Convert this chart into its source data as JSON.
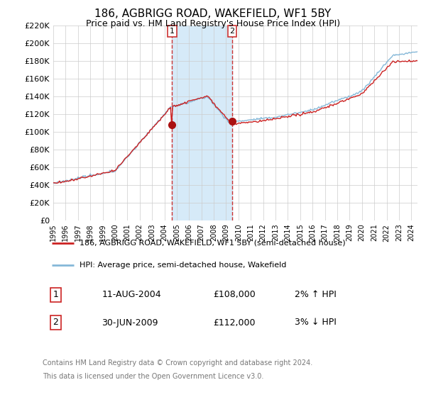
{
  "title": "186, AGBRIGG ROAD, WAKEFIELD, WF1 5BY",
  "subtitle": "Price paid vs. HM Land Registry's House Price Index (HPI)",
  "ylim": [
    0,
    220000
  ],
  "ytick_values": [
    0,
    20000,
    40000,
    60000,
    80000,
    100000,
    120000,
    140000,
    160000,
    180000,
    200000,
    220000
  ],
  "sale1_date": 2004.62,
  "sale1_price": 108000,
  "sale1_label": "1",
  "sale1_date_str": "11-AUG-2004",
  "sale1_price_str": "£108,000",
  "sale1_hpi": "2% ↑ HPI",
  "sale2_date": 2009.5,
  "sale2_price": 112000,
  "sale2_label": "2",
  "sale2_date_str": "30-JUN-2009",
  "sale2_price_str": "£112,000",
  "sale2_hpi": "3% ↓ HPI",
  "shade_color": "#d6eaf8",
  "vline_color": "#cc3333",
  "hpi_line_color": "#85b8d8",
  "price_line_color": "#cc2222",
  "dot_color": "#aa1111",
  "background_color": "#ffffff",
  "legend_address": "186, AGBRIGG ROAD, WAKEFIELD, WF1 5BY (semi-detached house)",
  "legend_hpi": "HPI: Average price, semi-detached house, Wakefield",
  "footer1": "Contains HM Land Registry data © Crown copyright and database right 2024.",
  "footer2": "This data is licensed under the Open Government Licence v3.0.",
  "xlim_start": 1995,
  "xlim_end": 2024.5
}
